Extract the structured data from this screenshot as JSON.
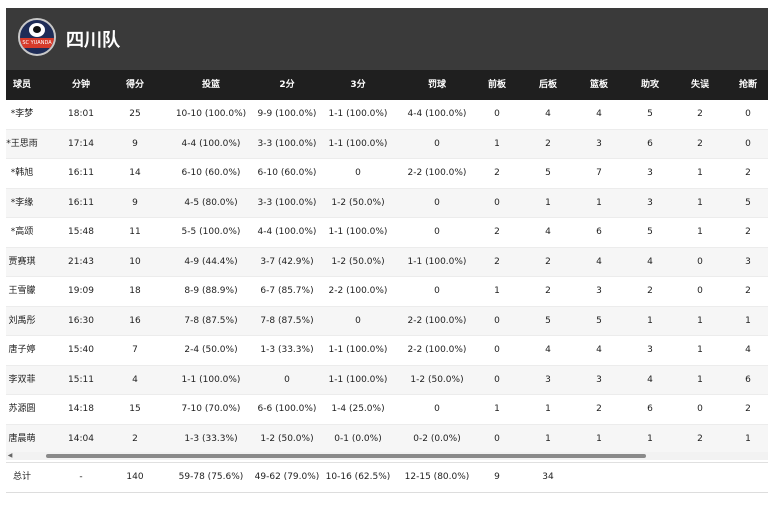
{
  "team": {
    "name": "四川队",
    "logo_text": "SC YUANDA"
  },
  "columns": [
    "球员",
    "分钟",
    "得分",
    "投篮",
    "2分",
    "3分",
    "罚球",
    "前板",
    "后板",
    "篮板",
    "助攻",
    "失误",
    "抢断"
  ],
  "players": [
    {
      "name": "*李梦",
      "min": "18:01",
      "pts": "25",
      "fg": "10-10 (100.0%)",
      "p2": "9-9 (100.0%)",
      "p3": "1-1 (100.0%)",
      "ft": "4-4 (100.0%)",
      "oreb": "0",
      "dreb": "4",
      "reb": "4",
      "ast": "5",
      "tov": "2",
      "stl": "0"
    },
    {
      "name": "*王思雨",
      "min": "17:14",
      "pts": "9",
      "fg": "4-4 (100.0%)",
      "p2": "3-3 (100.0%)",
      "p3": "1-1 (100.0%)",
      "ft": "0",
      "oreb": "1",
      "dreb": "2",
      "reb": "3",
      "ast": "6",
      "tov": "2",
      "stl": "0"
    },
    {
      "name": "*韩旭",
      "min": "16:11",
      "pts": "14",
      "fg": "6-10 (60.0%)",
      "p2": "6-10 (60.0%)",
      "p3": "0",
      "ft": "2-2 (100.0%)",
      "oreb": "2",
      "dreb": "5",
      "reb": "7",
      "ast": "3",
      "tov": "1",
      "stl": "2"
    },
    {
      "name": "*李缘",
      "min": "16:11",
      "pts": "9",
      "fg": "4-5 (80.0%)",
      "p2": "3-3 (100.0%)",
      "p3": "1-2 (50.0%)",
      "ft": "0",
      "oreb": "0",
      "dreb": "1",
      "reb": "1",
      "ast": "3",
      "tov": "1",
      "stl": "5"
    },
    {
      "name": "*高颂",
      "min": "15:48",
      "pts": "11",
      "fg": "5-5 (100.0%)",
      "p2": "4-4 (100.0%)",
      "p3": "1-1 (100.0%)",
      "ft": "0",
      "oreb": "2",
      "dreb": "4",
      "reb": "6",
      "ast": "5",
      "tov": "1",
      "stl": "2"
    },
    {
      "name": "贾赛琪",
      "min": "21:43",
      "pts": "10",
      "fg": "4-9 (44.4%)",
      "p2": "3-7 (42.9%)",
      "p3": "1-2 (50.0%)",
      "ft": "1-1 (100.0%)",
      "oreb": "2",
      "dreb": "2",
      "reb": "4",
      "ast": "4",
      "tov": "0",
      "stl": "3"
    },
    {
      "name": "王雪朦",
      "min": "19:09",
      "pts": "18",
      "fg": "8-9 (88.9%)",
      "p2": "6-7 (85.7%)",
      "p3": "2-2 (100.0%)",
      "ft": "0",
      "oreb": "1",
      "dreb": "2",
      "reb": "3",
      "ast": "2",
      "tov": "0",
      "stl": "2"
    },
    {
      "name": "刘禹彤",
      "min": "16:30",
      "pts": "16",
      "fg": "7-8 (87.5%)",
      "p2": "7-8 (87.5%)",
      "p3": "0",
      "ft": "2-2 (100.0%)",
      "oreb": "0",
      "dreb": "5",
      "reb": "5",
      "ast": "1",
      "tov": "1",
      "stl": "1"
    },
    {
      "name": "唐子婷",
      "min": "15:40",
      "pts": "7",
      "fg": "2-4 (50.0%)",
      "p2": "1-3 (33.3%)",
      "p3": "1-1 (100.0%)",
      "ft": "2-2 (100.0%)",
      "oreb": "0",
      "dreb": "4",
      "reb": "4",
      "ast": "3",
      "tov": "1",
      "stl": "4"
    },
    {
      "name": "李双菲",
      "min": "15:11",
      "pts": "4",
      "fg": "1-1 (100.0%)",
      "p2": "0",
      "p3": "1-1 (100.0%)",
      "ft": "1-2 (50.0%)",
      "oreb": "0",
      "dreb": "3",
      "reb": "3",
      "ast": "4",
      "tov": "1",
      "stl": "6"
    },
    {
      "name": "苏源圆",
      "min": "14:18",
      "pts": "15",
      "fg": "7-10 (70.0%)",
      "p2": "6-6 (100.0%)",
      "p3": "1-4 (25.0%)",
      "ft": "0",
      "oreb": "1",
      "dreb": "1",
      "reb": "2",
      "ast": "6",
      "tov": "0",
      "stl": "2"
    },
    {
      "name": "唐晨萌",
      "min": "14:04",
      "pts": "2",
      "fg": "1-3 (33.3%)",
      "p2": "1-2 (50.0%)",
      "p3": "0-1 (0.0%)",
      "ft": "0-2 (0.0%)",
      "oreb": "0",
      "dreb": "1",
      "reb": "1",
      "ast": "1",
      "tov": "2",
      "stl": "1"
    }
  ],
  "totals": {
    "name": "总计",
    "min": "-",
    "pts": "140",
    "fg": "59-78 (75.6%)",
    "p2": "49-62 (79.0%)",
    "p3": "10-16 (62.5%)",
    "ft": "12-15 (80.0%)",
    "oreb": "9",
    "dreb": "34",
    "reb": "",
    "ast": "",
    "tov": "",
    "stl": ""
  },
  "icons": {
    "scroll_left": "triangle-left-icon"
  },
  "colors": {
    "header_bg": "#3a3a3a",
    "thead_bg": "#1f1f1f",
    "accent": "#d63a2a",
    "logo_bg": "#1e2c57"
  }
}
